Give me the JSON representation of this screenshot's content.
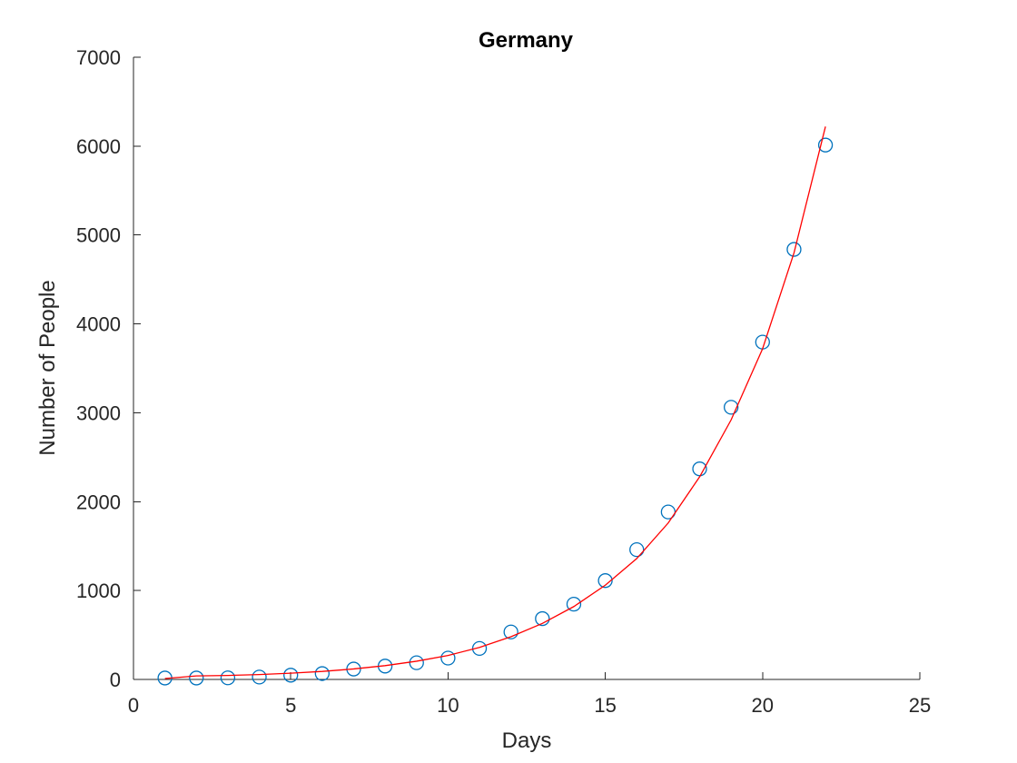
{
  "chart_data": {
    "type": "scatter",
    "title": "Germany",
    "xlabel": "Days",
    "ylabel": "Number of People",
    "xlim": [
      0,
      25
    ],
    "ylim": [
      0,
      7000
    ],
    "x_ticks": [
      0,
      5,
      10,
      15,
      20,
      25
    ],
    "y_ticks": [
      0,
      1000,
      2000,
      3000,
      4000,
      5000,
      6000,
      7000
    ],
    "grid": false,
    "legend": "none",
    "series": [
      {
        "kind": "markers",
        "marker": "circle",
        "color": "#0072BD",
        "x": [
          1,
          2,
          3,
          4,
          5,
          6,
          7,
          8,
          9,
          10,
          11,
          12,
          13,
          14,
          15,
          16,
          17,
          18,
          19,
          20,
          21,
          22
        ],
        "y": [
          16,
          16,
          18,
          27,
          48,
          66,
          117,
          150,
          188,
          240,
          349,
          534,
          684,
          847,
          1112,
          1460,
          1884,
          2369,
          3062,
          3795,
          4838,
          6012
        ]
      },
      {
        "kind": "line",
        "color": "#FF0000",
        "x": [
          1,
          2,
          3,
          4,
          5,
          6,
          7,
          8,
          9,
          10,
          11,
          12,
          13,
          14,
          15,
          16,
          17,
          18,
          19,
          20,
          21,
          22
        ],
        "y": [
          10,
          40,
          45,
          55,
          70,
          90,
          118,
          155,
          205,
          270,
          360,
          480,
          630,
          820,
          1060,
          1360,
          1760,
          2280,
          2920,
          3720,
          4800,
          6220
        ]
      }
    ]
  }
}
